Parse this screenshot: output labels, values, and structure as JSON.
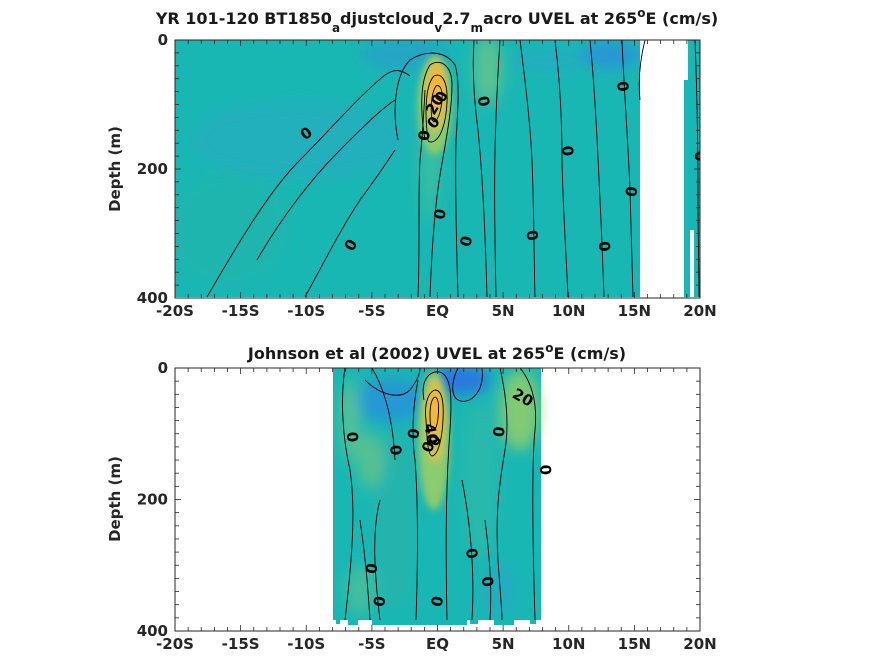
{
  "chart_data": [
    {
      "type": "contour",
      "title_parts": {
        "a": "YR 101-120 BT1850",
        "b": "a",
        "c": "djustcloud",
        "d": "v",
        "e": "2.7",
        "f": "m",
        "g": "acro UVEL at 265",
        "h": "o",
        "i": "E (cm/s)"
      },
      "ylabel": "Depth (m)",
      "xlim": [
        -20,
        20
      ],
      "ylim": [
        400,
        0
      ],
      "xticks": [
        -20,
        -15,
        -10,
        -5,
        0,
        5,
        10,
        15,
        20
      ],
      "xticklabels": [
        "-20S",
        "-15S",
        "-10S",
        "-5S",
        "EQ",
        "5N",
        "10N",
        "15N",
        "20N"
      ],
      "yticks": [
        0,
        200,
        400
      ],
      "yticklabels": [
        "0",
        "200",
        "400"
      ],
      "data_extent": {
        "lon_min": -20,
        "lon_max": 20,
        "masked_right_from": 15.5
      },
      "undercurrent_core": {
        "lon": 0.0,
        "depth": 75,
        "max_speed": 60
      },
      "contour_labels": [
        {
          "text": "0",
          "x": -10,
          "y": 145,
          "rot": -35
        },
        {
          "text": "0",
          "x": -6.6,
          "y": 318,
          "rot": -60
        },
        {
          "text": "0",
          "x": -1.0,
          "y": 148,
          "rot": -80
        },
        {
          "text": "20",
          "x": -0.2,
          "y": 100,
          "rot": -60
        },
        {
          "text": "0",
          "x": -0.3,
          "y": 128,
          "rot": -50
        },
        {
          "text": "0",
          "x": 0.3,
          "y": 88,
          "rot": -70
        },
        {
          "text": "0",
          "x": 0.2,
          "y": 270,
          "rot": -80
        },
        {
          "text": "0",
          "x": 2.2,
          "y": 312,
          "rot": -80
        },
        {
          "text": "0",
          "x": 3.5,
          "y": 95,
          "rot": 80
        },
        {
          "text": "0",
          "x": 7.2,
          "y": 303,
          "rot": 80
        },
        {
          "text": "0",
          "x": 9.9,
          "y": 172,
          "rot": 85
        },
        {
          "text": "0",
          "x": 12.7,
          "y": 320,
          "rot": 85
        },
        {
          "text": "0",
          "x": 14.1,
          "y": 72,
          "rot": 85
        },
        {
          "text": "0",
          "x": 14.8,
          "y": 235,
          "rot": -80
        },
        {
          "text": "0",
          "x": 20.0,
          "y": 180,
          "rot": 85
        }
      ]
    },
    {
      "type": "contour",
      "title_parts": {
        "a": "Johnson et al (2002) UVEL at 265",
        "b": "o",
        "c": "E (cm/s)"
      },
      "ylabel": "Depth (m)",
      "xlim": [
        -20,
        20
      ],
      "ylim": [
        400,
        0
      ],
      "xticks": [
        -20,
        -15,
        -10,
        -5,
        0,
        5,
        10,
        15,
        20
      ],
      "xticklabels": [
        "-20S",
        "-15S",
        "-10S",
        "-5S",
        "EQ",
        "5N",
        "10N",
        "15N",
        "20N"
      ],
      "yticks": [
        0,
        200,
        400
      ],
      "yticklabels": [
        "0",
        "200",
        "400"
      ],
      "data_extent": {
        "lon_min": -8,
        "lon_max": 8.2
      },
      "undercurrent_core": {
        "lon": 0.0,
        "depth": 70,
        "max_speed": 60
      },
      "contour_labels": [
        {
          "text": "0",
          "x": -6.5,
          "y": 105,
          "rot": 85
        },
        {
          "text": "0",
          "x": -3.2,
          "y": 125,
          "rot": 85
        },
        {
          "text": "0",
          "x": -1.8,
          "y": 100,
          "rot": -80
        },
        {
          "text": "40",
          "x": -0.5,
          "y": 100,
          "rot": 80
        },
        {
          "text": "0",
          "x": -0.7,
          "y": 120,
          "rot": -70
        },
        {
          "text": "0",
          "x": -0.2,
          "y": 110,
          "rot": -60
        },
        {
          "text": "0",
          "x": 4.7,
          "y": 97,
          "rot": -85
        },
        {
          "text": "20",
          "x": 6.5,
          "y": 45,
          "rot": 30
        },
        {
          "text": "0",
          "x": 8.2,
          "y": 155,
          "rot": 85
        },
        {
          "text": "0",
          "x": -5.0,
          "y": 305,
          "rot": -80
        },
        {
          "text": "0",
          "x": -4.4,
          "y": 355,
          "rot": -80
        },
        {
          "text": "0",
          "x": 0.0,
          "y": 355,
          "rot": -80
        },
        {
          "text": "0",
          "x": 2.6,
          "y": 282,
          "rot": 80
        },
        {
          "text": "0",
          "x": 3.8,
          "y": 325,
          "rot": 80
        }
      ]
    }
  ]
}
